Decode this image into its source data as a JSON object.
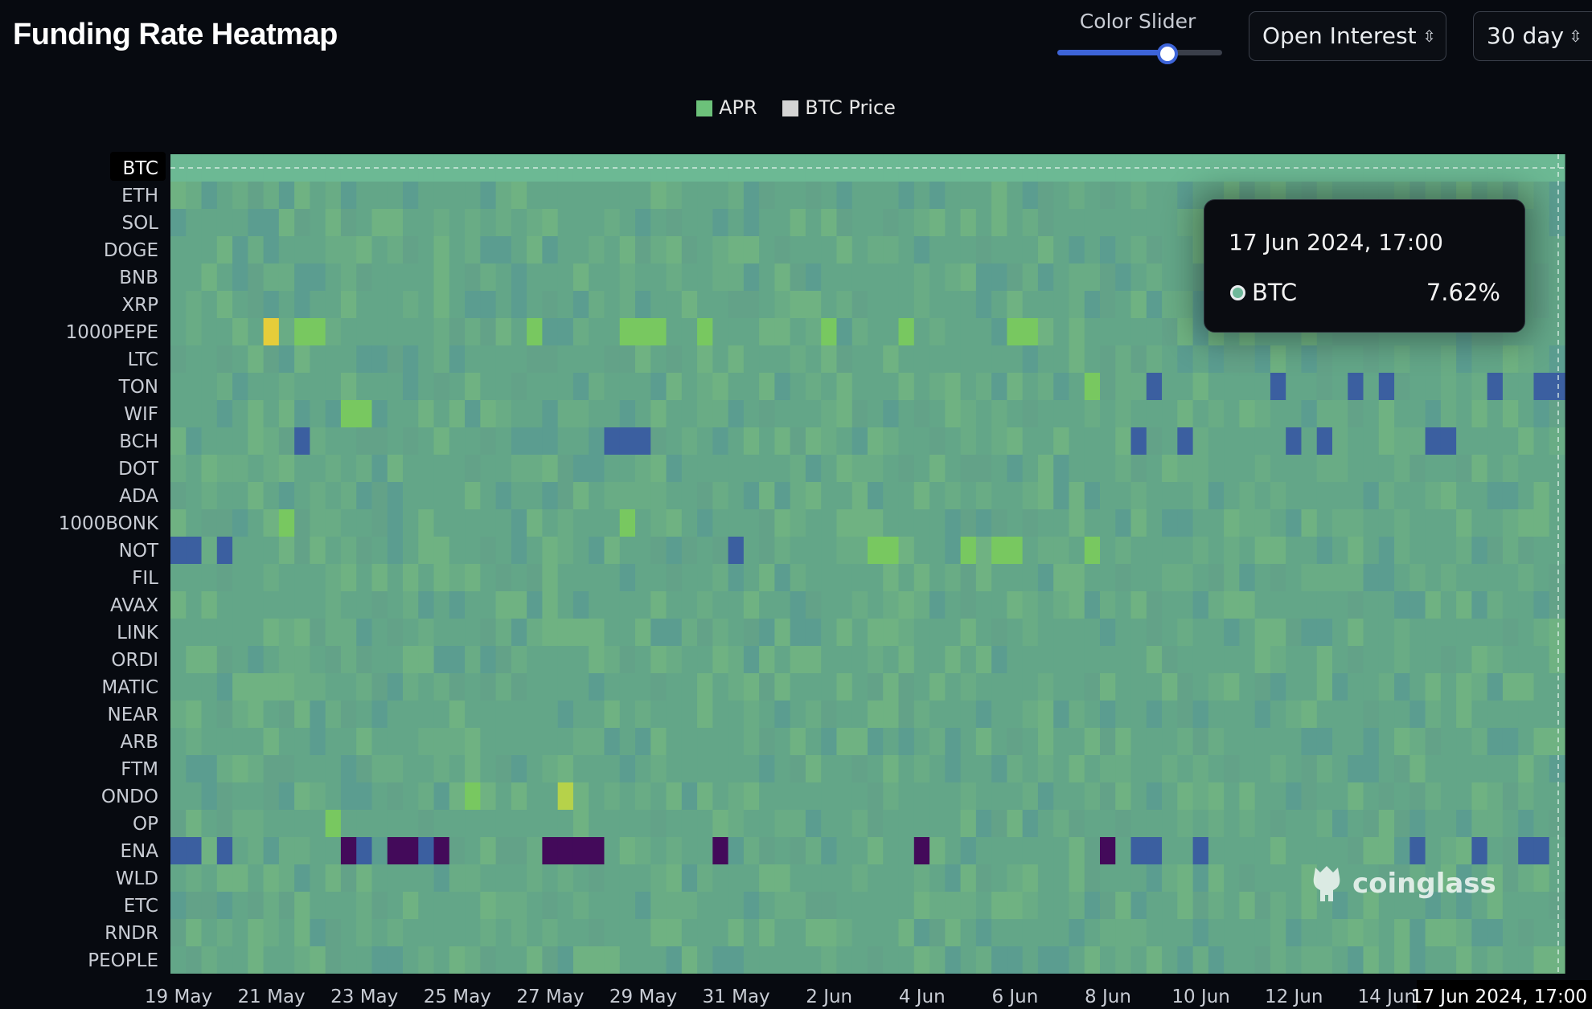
{
  "header": {
    "title": "Funding Rate Heatmap",
    "slider_label": "Color Slider",
    "slider_value": 0.67,
    "metric_select": "Open Interest",
    "range_select": "30 day"
  },
  "tooltip": {
    "time": "17 Jun 2024, 17:00",
    "series": "BTC",
    "value": "7.62%"
  },
  "watermark": "coinglass",
  "colors": {
    "background": "#070a10",
    "base_cell": "#63a688",
    "accent": "#3d64d8",
    "apr_legend": "#6cc17a",
    "btc_price_legend": "#d4d4d4"
  },
  "chart_data": {
    "type": "heatmap",
    "legend": [
      {
        "name": "APR",
        "color": "#6cc17a"
      },
      {
        "name": "BTC Price",
        "color": "#d4d4d4"
      }
    ],
    "legend_position": "top-center",
    "y_categories": [
      "BTC",
      "ETH",
      "SOL",
      "DOGE",
      "BNB",
      "XRP",
      "1000PEPE",
      "LTC",
      "TON",
      "WIF",
      "BCH",
      "DOT",
      "ADA",
      "1000BONK",
      "NOT",
      "FIL",
      "AVAX",
      "LINK",
      "ORDI",
      "MATIC",
      "NEAR",
      "ARB",
      "FTM",
      "ONDO",
      "OP",
      "ENA",
      "WLD",
      "ETC",
      "RNDR",
      "PEOPLE"
    ],
    "x_tick_labels": [
      "19 May",
      "21 May",
      "23 May",
      "25 May",
      "27 May",
      "29 May",
      "31 May",
      "2 Jun",
      "4 Jun",
      "6 Jun",
      "8 Jun",
      "10 Jun",
      "12 Jun",
      "14 Jun"
    ],
    "x_highlight_label": "17 Jun 2024, 17:00",
    "highlight_row": "BTC",
    "color_scale": {
      "low": "#430a5a",
      "mid_low": "#3b5fa0",
      "mid": "#63a688",
      "high": "#78c860",
      "extreme": "#e6cd3a"
    },
    "notable_cells": [
      {
        "row": "1000PEPE",
        "col": 6,
        "level": "extreme"
      },
      {
        "row": "1000PEPE",
        "col": 8,
        "level": "high"
      },
      {
        "row": "1000PEPE",
        "col": 9,
        "level": "high"
      },
      {
        "row": "1000PEPE",
        "col": 23,
        "level": "high"
      },
      {
        "row": "1000PEPE",
        "col": 29,
        "level": "high"
      },
      {
        "row": "1000PEPE",
        "col": 30,
        "level": "high"
      },
      {
        "row": "1000PEPE",
        "col": 31,
        "level": "high"
      },
      {
        "row": "1000PEPE",
        "col": 34,
        "level": "high"
      },
      {
        "row": "1000PEPE",
        "col": 42,
        "level": "high"
      },
      {
        "row": "1000PEPE",
        "col": 47,
        "level": "high"
      },
      {
        "row": "1000PEPE",
        "col": 54,
        "level": "high"
      },
      {
        "row": "1000PEPE",
        "col": 55,
        "level": "high"
      },
      {
        "row": "TON",
        "col": 59,
        "level": "high"
      },
      {
        "row": "TON",
        "col": 63,
        "level": "mid_low"
      },
      {
        "row": "TON",
        "col": 71,
        "level": "mid_low"
      },
      {
        "row": "TON",
        "col": 76,
        "level": "mid_low"
      },
      {
        "row": "TON",
        "col": 78,
        "level": "mid_low"
      },
      {
        "row": "TON",
        "col": 85,
        "level": "mid_low"
      },
      {
        "row": "TON",
        "col": 88,
        "level": "mid_low"
      },
      {
        "row": "TON",
        "col": 89,
        "level": "mid_low"
      },
      {
        "row": "WIF",
        "col": 11,
        "level": "high"
      },
      {
        "row": "WIF",
        "col": 12,
        "level": "high"
      },
      {
        "row": "BCH",
        "col": 8,
        "level": "mid_low"
      },
      {
        "row": "BCH",
        "col": 28,
        "level": "mid_low"
      },
      {
        "row": "BCH",
        "col": 29,
        "level": "mid_low"
      },
      {
        "row": "BCH",
        "col": 30,
        "level": "mid_low"
      },
      {
        "row": "BCH",
        "col": 62,
        "level": "mid_low"
      },
      {
        "row": "BCH",
        "col": 65,
        "level": "mid_low"
      },
      {
        "row": "BCH",
        "col": 72,
        "level": "mid_low"
      },
      {
        "row": "BCH",
        "col": 74,
        "level": "mid_low"
      },
      {
        "row": "BCH",
        "col": 81,
        "level": "mid_low"
      },
      {
        "row": "BCH",
        "col": 82,
        "level": "mid_low"
      },
      {
        "row": "1000BONK",
        "col": 7,
        "level": "high"
      },
      {
        "row": "1000BONK",
        "col": 29,
        "level": "high"
      },
      {
        "row": "NOT",
        "col": 0,
        "level": "mid_low"
      },
      {
        "row": "NOT",
        "col": 1,
        "level": "mid_low"
      },
      {
        "row": "NOT",
        "col": 3,
        "level": "mid_low"
      },
      {
        "row": "NOT",
        "col": 36,
        "level": "mid_low"
      },
      {
        "row": "NOT",
        "col": 45,
        "level": "high"
      },
      {
        "row": "NOT",
        "col": 46,
        "level": "high"
      },
      {
        "row": "NOT",
        "col": 51,
        "level": "high"
      },
      {
        "row": "NOT",
        "col": 53,
        "level": "high"
      },
      {
        "row": "NOT",
        "col": 54,
        "level": "high"
      },
      {
        "row": "NOT",
        "col": 59,
        "level": "high"
      },
      {
        "row": "ONDO",
        "col": 19,
        "level": "high"
      },
      {
        "row": "ONDO",
        "col": 25,
        "level": "extreme_low"
      },
      {
        "row": "OP",
        "col": 10,
        "level": "high"
      },
      {
        "row": "ENA",
        "col": 0,
        "level": "mid_low"
      },
      {
        "row": "ENA",
        "col": 1,
        "level": "mid_low"
      },
      {
        "row": "ENA",
        "col": 3,
        "level": "mid_low"
      },
      {
        "row": "ENA",
        "col": 11,
        "level": "low"
      },
      {
        "row": "ENA",
        "col": 12,
        "level": "mid_low"
      },
      {
        "row": "ENA",
        "col": 14,
        "level": "low"
      },
      {
        "row": "ENA",
        "col": 15,
        "level": "low"
      },
      {
        "row": "ENA",
        "col": 16,
        "level": "mid_low"
      },
      {
        "row": "ENA",
        "col": 17,
        "level": "low"
      },
      {
        "row": "ENA",
        "col": 24,
        "level": "low"
      },
      {
        "row": "ENA",
        "col": 25,
        "level": "low"
      },
      {
        "row": "ENA",
        "col": 26,
        "level": "low"
      },
      {
        "row": "ENA",
        "col": 27,
        "level": "low"
      },
      {
        "row": "ENA",
        "col": 35,
        "level": "low"
      },
      {
        "row": "ENA",
        "col": 48,
        "level": "low"
      },
      {
        "row": "ENA",
        "col": 60,
        "level": "low"
      },
      {
        "row": "ENA",
        "col": 62,
        "level": "mid_low"
      },
      {
        "row": "ENA",
        "col": 63,
        "level": "mid_low"
      },
      {
        "row": "ENA",
        "col": 66,
        "level": "mid_low"
      },
      {
        "row": "ENA",
        "col": 80,
        "level": "mid_low"
      },
      {
        "row": "ENA",
        "col": 84,
        "level": "mid_low"
      },
      {
        "row": "ENA",
        "col": 87,
        "level": "mid_low"
      },
      {
        "row": "ENA",
        "col": 88,
        "level": "mid_low"
      }
    ]
  }
}
